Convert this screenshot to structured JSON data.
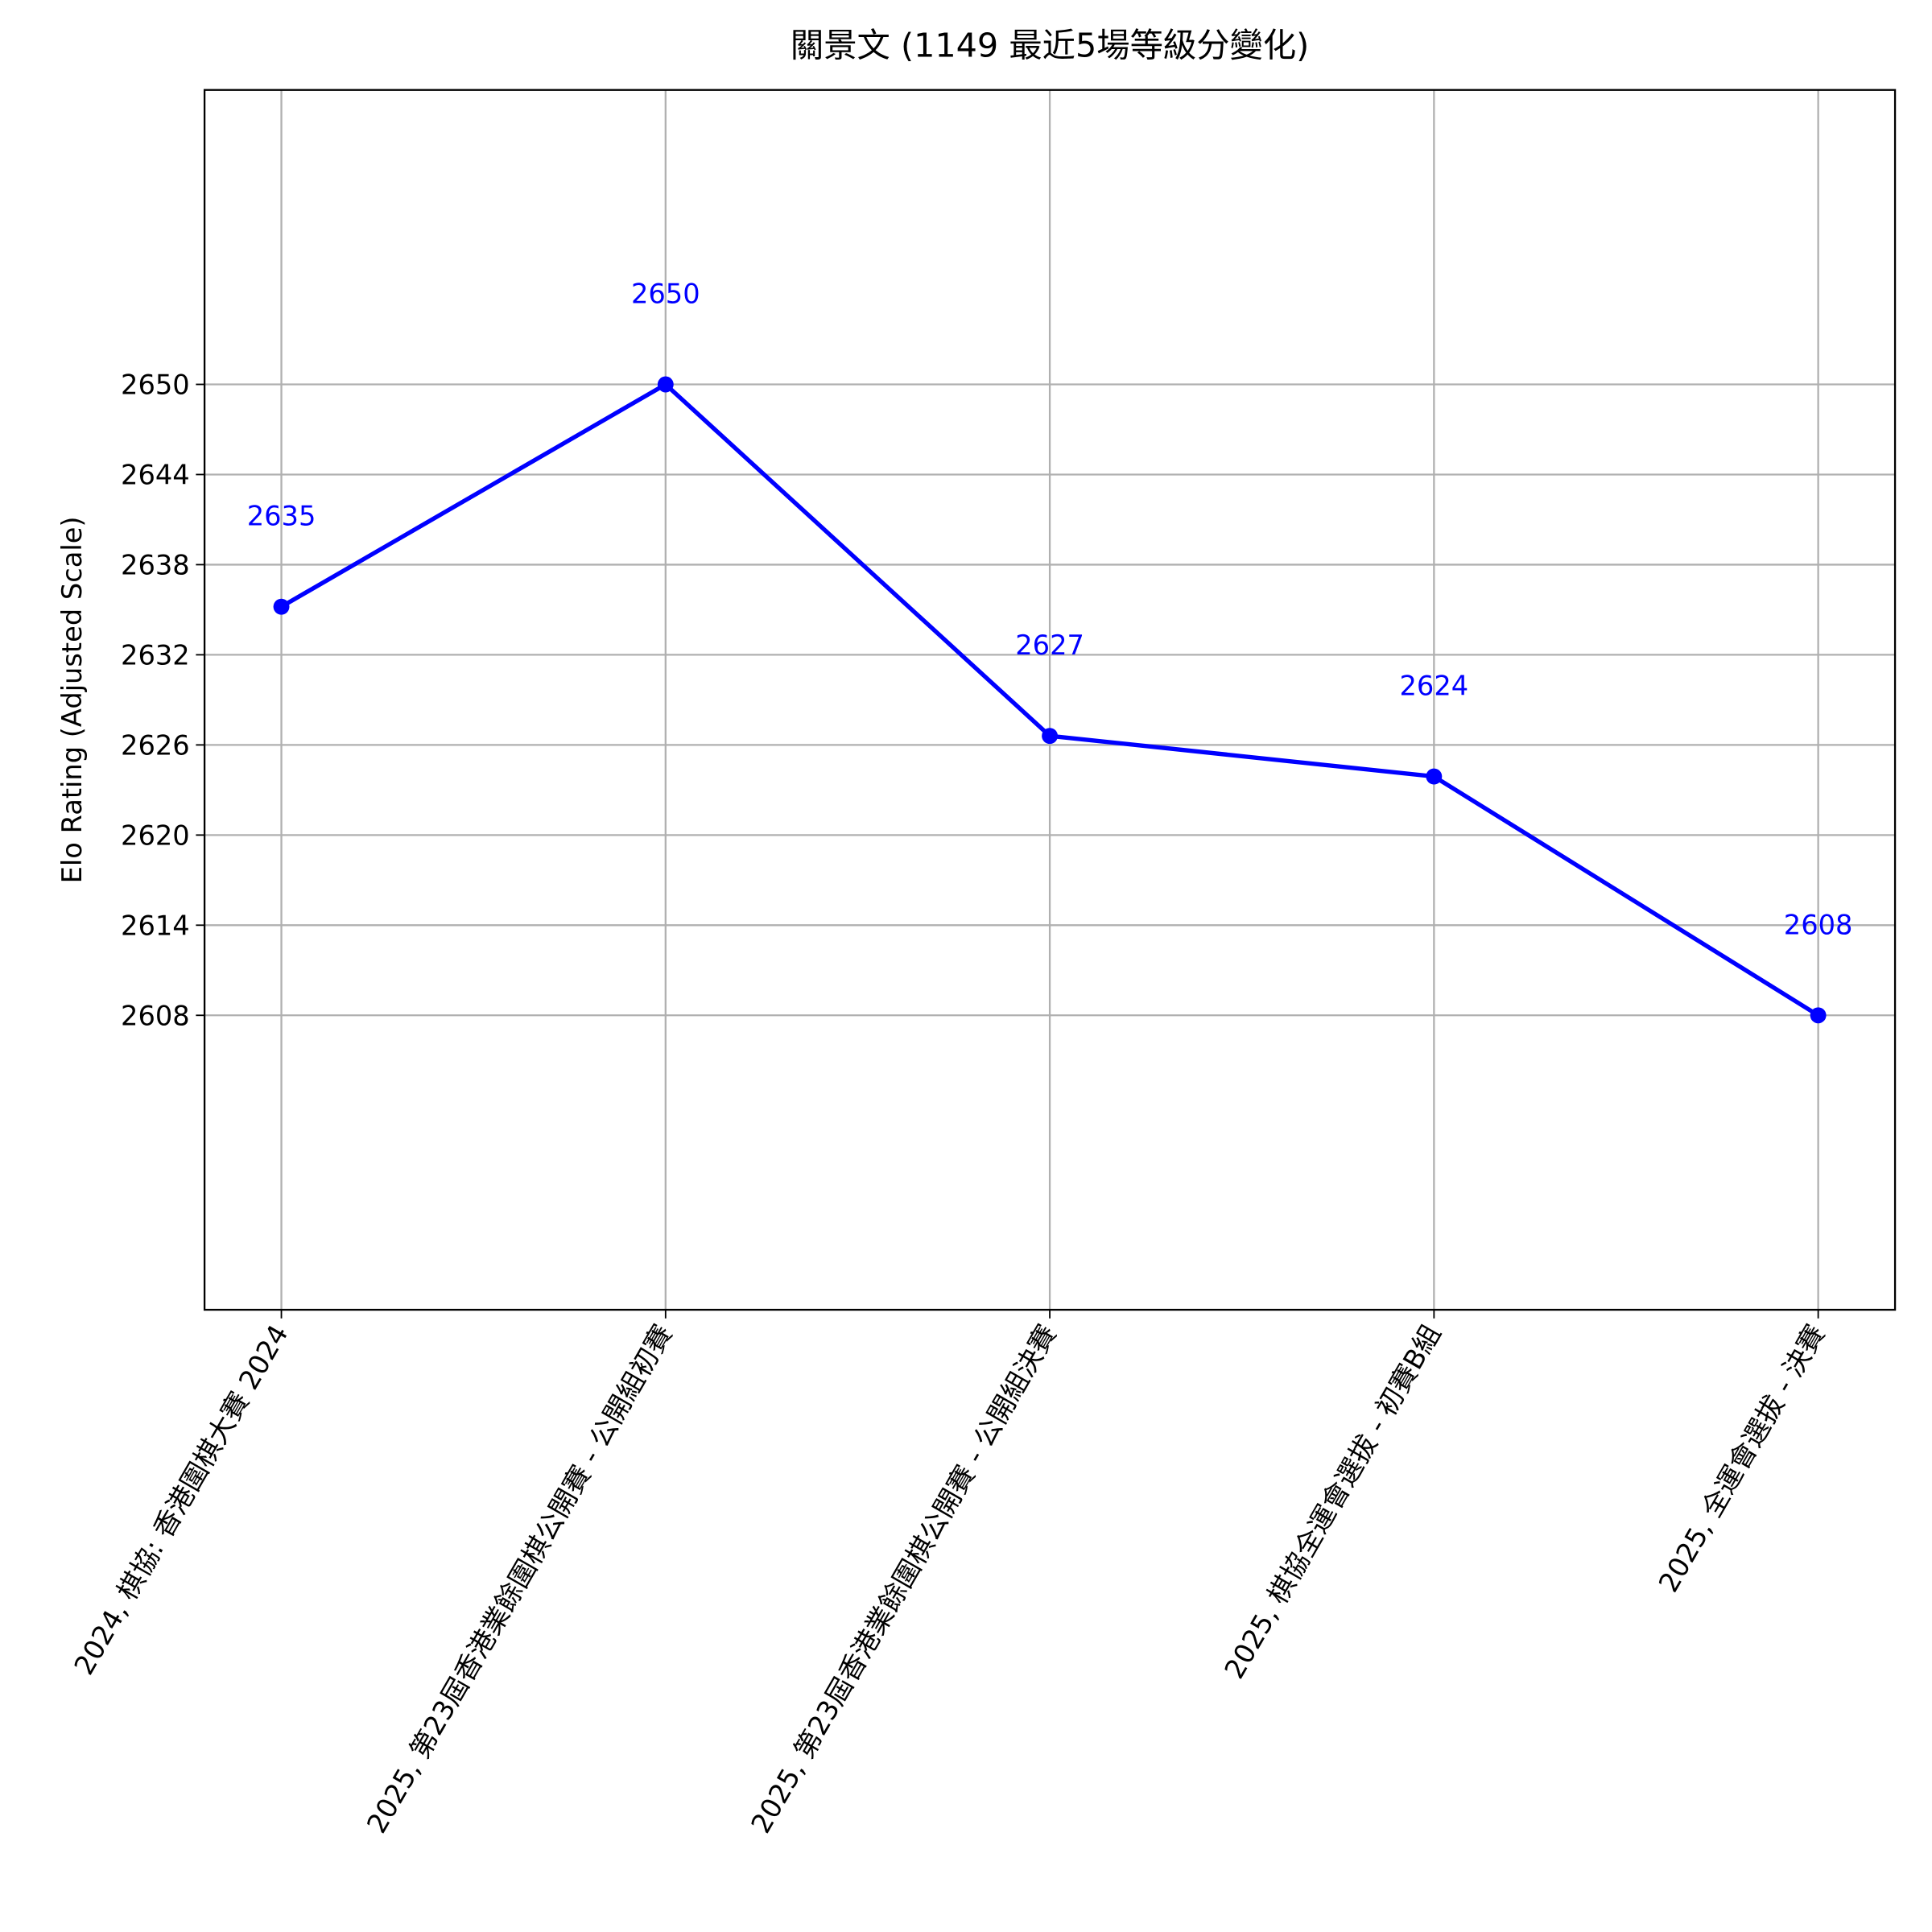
{
  "chart_data": {
    "type": "line",
    "title": "關景文 (1149 最近5場等級分變化)",
    "y_label": "Elo Rating (Adjusted Scale)",
    "categories": [
      "2024, 棋協: 香港圍棋大賽 2024",
      "2025, 第23屆香港業餘圍棋公開賽 - 公開組初賽",
      "2025, 第23屆香港業餘圍棋公開賽 - 公開組決賽",
      "2025, 棋協全運會選拔 - 初賽B組",
      "2025, 全運會選拔 - 決賽"
    ],
    "values": [
      2635.2,
      2650,
      2626.6,
      2623.9,
      2608
    ],
    "value_labels": [
      "2635",
      "2650",
      "2627",
      "2624",
      "2608"
    ],
    "color": "#0000ff",
    "ylim": [
      2588.4,
      2669.6
    ],
    "yticks": [
      2608,
      2614,
      2620,
      2626,
      2632,
      2638,
      2644,
      2650
    ],
    "grid": true
  }
}
